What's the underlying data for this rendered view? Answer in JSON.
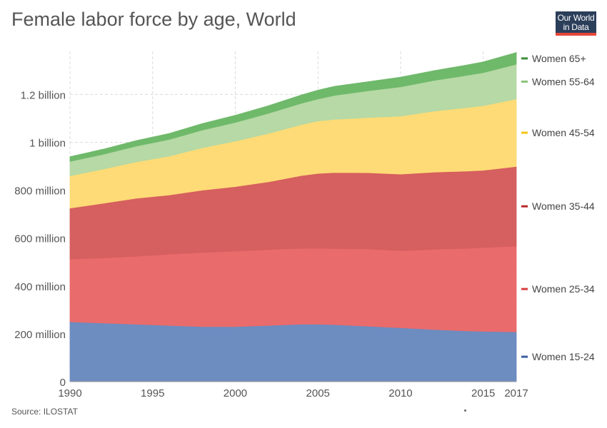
{
  "title": "Female labor force by age, World",
  "logo": {
    "line1": "Our World",
    "line2": "in Data"
  },
  "source": "Source: ILOSTAT",
  "chart_data": {
    "type": "area",
    "stacked": true,
    "title": "Female labor force by age, World",
    "x": [
      1990,
      1992,
      1994,
      1996,
      1998,
      2000,
      2002,
      2004,
      2005,
      2006,
      2008,
      2010,
      2012,
      2014,
      2015,
      2017
    ],
    "xlim": [
      1990,
      2017
    ],
    "ylim": [
      0,
      1380000000
    ],
    "x_ticks": [
      {
        "value": 1990,
        "label": "1990"
      },
      {
        "value": 1995,
        "label": "1995"
      },
      {
        "value": 2000,
        "label": "2000"
      },
      {
        "value": 2005,
        "label": "2005"
      },
      {
        "value": 2010,
        "label": "2010"
      },
      {
        "value": 2015,
        "label": "2015"
      },
      {
        "value": 2017,
        "label": "2017"
      }
    ],
    "y_ticks": [
      {
        "value": 0,
        "label": "0"
      },
      {
        "value": 200000000,
        "label": "200 million"
      },
      {
        "value": 400000000,
        "label": "400 million"
      },
      {
        "value": 600000000,
        "label": "600 million"
      },
      {
        "value": 800000000,
        "label": "800 million"
      },
      {
        "value": 1000000000,
        "label": "1 billion"
      },
      {
        "value": 1200000000,
        "label": "1.2 billion"
      }
    ],
    "grid": true,
    "legend": "right",
    "series": [
      {
        "name": "Women 15-24",
        "color": "#6d8cc0",
        "legend_color": "#3c5fa0",
        "values": [
          250000000,
          245000000,
          240000000,
          235000000,
          230000000,
          230000000,
          235000000,
          240000000,
          240000000,
          238000000,
          232000000,
          225000000,
          218000000,
          212000000,
          210000000,
          208000000
        ]
      },
      {
        "name": "Women 25-34",
        "color": "#ea6b6b",
        "legend_color": "#d84040",
        "values": [
          262000000,
          272000000,
          284000000,
          297000000,
          310000000,
          315000000,
          317000000,
          317000000,
          318000000,
          318000000,
          323000000,
          322000000,
          335000000,
          345000000,
          350000000,
          358000000
        ]
      },
      {
        "name": "Women 35-44",
        "color": "#d65f5f",
        "legend_color": "#b82a2a",
        "values": [
          213000000,
          228000000,
          242000000,
          248000000,
          260000000,
          270000000,
          283000000,
          304000000,
          312000000,
          318000000,
          318000000,
          320000000,
          322000000,
          323000000,
          323000000,
          333000000
        ]
      },
      {
        "name": "Women 45-54",
        "color": "#fedb76",
        "legend_color": "#f5c518",
        "values": [
          135000000,
          143000000,
          152000000,
          162000000,
          177000000,
          190000000,
          202000000,
          213000000,
          219000000,
          222000000,
          230000000,
          242000000,
          255000000,
          265000000,
          270000000,
          282000000
        ]
      },
      {
        "name": "Women 55-64",
        "color": "#b6d9a5",
        "legend_color": "#8bc27a",
        "values": [
          60000000,
          62000000,
          66000000,
          70000000,
          74000000,
          78000000,
          84000000,
          89000000,
          92000000,
          100000000,
          112000000,
          123000000,
          128000000,
          135000000,
          138000000,
          145000000
        ]
      },
      {
        "name": "Women 65+",
        "color": "#6fb96a",
        "legend_color": "#3a8f3a",
        "values": [
          20000000,
          21000000,
          23000000,
          25000000,
          27000000,
          30000000,
          32000000,
          35000000,
          37000000,
          38000000,
          38000000,
          40000000,
          41000000,
          43000000,
          45000000,
          49000000
        ]
      }
    ]
  }
}
